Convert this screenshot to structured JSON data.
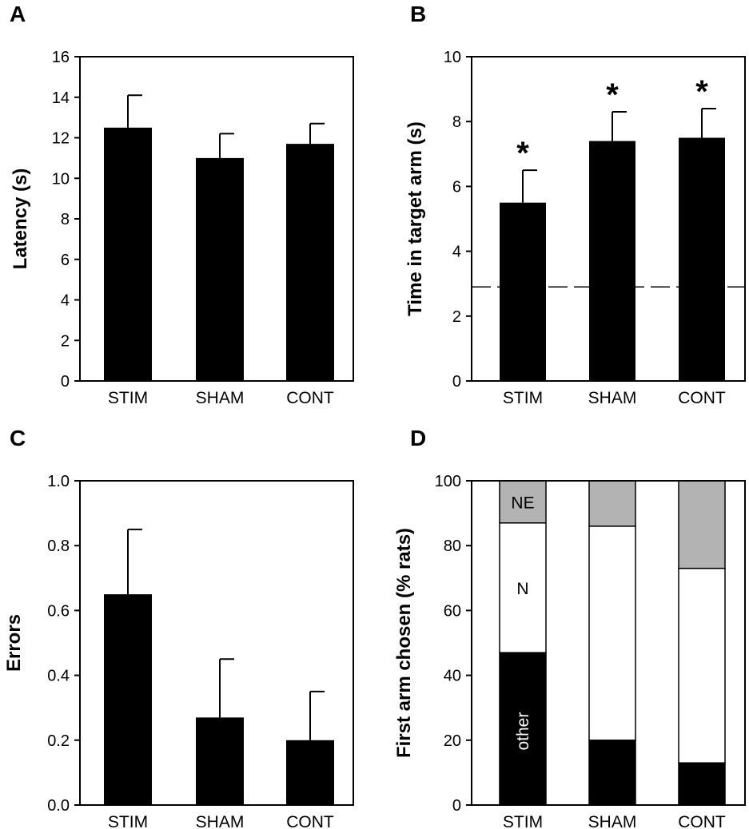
{
  "chart_data": [
    {
      "panel": "A",
      "type": "bar",
      "categories": [
        "STIM",
        "SHAM",
        "CONT"
      ],
      "values": [
        12.5,
        11.0,
        11.7
      ],
      "errors": [
        1.6,
        1.2,
        1.0
      ],
      "ylabel": "Latency (s)",
      "xlabel": "",
      "ylim": [
        0,
        16
      ],
      "yticks": [
        "0",
        "2",
        "4",
        "6",
        "8",
        "10",
        "12",
        "14",
        "16"
      ],
      "bar_color": "#000000"
    },
    {
      "panel": "B",
      "type": "bar",
      "categories": [
        "STIM",
        "SHAM",
        "CONT"
      ],
      "values": [
        5.5,
        7.4,
        7.5
      ],
      "errors": [
        1.0,
        0.9,
        0.9
      ],
      "markers": [
        "*",
        "*",
        "*"
      ],
      "reference_line": 2.9,
      "ylabel": "Time in target arm (s)",
      "xlabel": "",
      "ylim": [
        0,
        10
      ],
      "yticks": [
        "0",
        "2",
        "4",
        "6",
        "8",
        "10"
      ],
      "bar_color": "#000000"
    },
    {
      "panel": "C",
      "type": "bar",
      "categories": [
        "STIM",
        "SHAM",
        "CONT"
      ],
      "values": [
        0.65,
        0.27,
        0.2
      ],
      "errors": [
        0.2,
        0.18,
        0.15
      ],
      "ylabel": "Errors",
      "xlabel": "",
      "ylim": [
        0,
        1
      ],
      "yticks": [
        "0.0",
        "0.2",
        "0.4",
        "0.6",
        "0.8",
        "1.0"
      ],
      "bar_color": "#000000"
    },
    {
      "panel": "D",
      "type": "bar",
      "stacked": true,
      "categories": [
        "STIM",
        "SHAM",
        "CONT"
      ],
      "series": [
        {
          "name": "other",
          "values": [
            47,
            20,
            13
          ],
          "color": "#000000"
        },
        {
          "name": "N",
          "values": [
            40,
            66,
            60
          ],
          "color": "#ffffff"
        },
        {
          "name": "NE",
          "values": [
            13,
            14,
            27
          ],
          "color": "#b3b3b3"
        }
      ],
      "ylabel": "First arm chosen (% rats)",
      "xlabel": "",
      "ylim": [
        0,
        100
      ],
      "yticks": [
        "0",
        "20",
        "40",
        "60",
        "80",
        "100"
      ]
    }
  ]
}
